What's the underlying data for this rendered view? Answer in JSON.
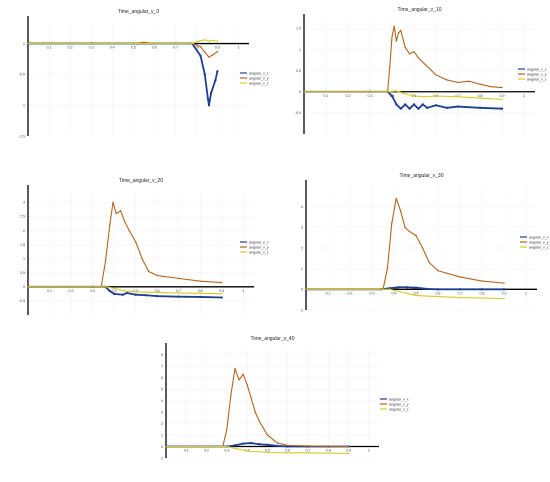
{
  "chart_data": [
    {
      "type": "line",
      "title": "Time_angular_v_0",
      "xlabel": "",
      "ylabel": "",
      "xlim": [
        0,
        1.05
      ],
      "ylim": [
        -1.5,
        0.35
      ],
      "xticks": [
        "0.1",
        "0.2",
        "0.3",
        "0.4",
        "0.5",
        "0.6",
        "0.7",
        "0.8",
        "0.9",
        "1"
      ],
      "yticks": [
        {
          "v": -1.5,
          "label": "-1.5"
        },
        {
          "v": -1,
          "label": "-1"
        },
        {
          "v": -0.5,
          "label": "-0.5"
        },
        {
          "v": 0,
          "label": "0"
        }
      ],
      "series": [
        {
          "name": "angular_v_x",
          "color": "#1f3f8f",
          "values": [
            [
              0,
              0
            ],
            [
              0.3,
              0
            ],
            [
              0.5,
              0
            ],
            [
              0.7,
              0
            ],
            [
              0.78,
              0
            ],
            [
              0.82,
              -0.2
            ],
            [
              0.84,
              -0.5
            ],
            [
              0.855,
              -0.9
            ],
            [
              0.86,
              -1.0
            ],
            [
              0.87,
              -0.8
            ],
            [
              0.89,
              -0.6
            ],
            [
              0.9,
              -0.45
            ]
          ]
        },
        {
          "name": "angular_v_y",
          "color": "#b5651d",
          "values": [
            [
              0,
              0
            ],
            [
              0.3,
              0
            ],
            [
              0.5,
              0
            ],
            [
              0.55,
              0.02
            ],
            [
              0.6,
              0
            ],
            [
              0.7,
              0
            ],
            [
              0.78,
              0
            ],
            [
              0.82,
              -0.05
            ],
            [
              0.84,
              -0.14
            ],
            [
              0.86,
              -0.22
            ],
            [
              0.88,
              -0.18
            ],
            [
              0.9,
              -0.13
            ]
          ]
        },
        {
          "name": "angular_v_z",
          "color": "#d4cc20",
          "values": [
            [
              0,
              0
            ],
            [
              0.5,
              0
            ],
            [
              0.7,
              0
            ],
            [
              0.78,
              0
            ],
            [
              0.81,
              0.04
            ],
            [
              0.84,
              0.06
            ],
            [
              0.86,
              0.04
            ],
            [
              0.88,
              0.05
            ],
            [
              0.9,
              0.04
            ]
          ]
        }
      ]
    },
    {
      "type": "line",
      "title": "Time_angular_v_10",
      "xlabel": "",
      "ylabel": "",
      "xlim": [
        0,
        1.05
      ],
      "ylim": [
        -1,
        1.7
      ],
      "xticks": [
        "0.1",
        "0.2",
        "0.3",
        "0.4",
        "0.5",
        "0.6",
        "0.7",
        "0.8",
        "0.9",
        "1"
      ],
      "yticks": [
        {
          "v": -0.5,
          "label": "-0.5"
        },
        {
          "v": 0,
          "label": "0"
        },
        {
          "v": 0.5,
          "label": "0.5"
        },
        {
          "v": 1,
          "label": "1"
        },
        {
          "v": 1.5,
          "label": "1.5"
        }
      ],
      "series": [
        {
          "name": "angular_v_x",
          "color": "#1f3f8f",
          "values": [
            [
              0,
              0
            ],
            [
              0.3,
              0
            ],
            [
              0.38,
              0
            ],
            [
              0.4,
              -0.1
            ],
            [
              0.42,
              -0.3
            ],
            [
              0.44,
              -0.4
            ],
            [
              0.46,
              -0.3
            ],
            [
              0.48,
              -0.4
            ],
            [
              0.5,
              -0.3
            ],
            [
              0.52,
              -0.4
            ],
            [
              0.54,
              -0.3
            ],
            [
              0.56,
              -0.38
            ],
            [
              0.6,
              -0.32
            ],
            [
              0.65,
              -0.38
            ],
            [
              0.7,
              -0.35
            ],
            [
              0.8,
              -0.38
            ],
            [
              0.9,
              -0.4
            ]
          ]
        },
        {
          "name": "angular_v_y",
          "color": "#b5651d",
          "values": [
            [
              0,
              0
            ],
            [
              0.3,
              0
            ],
            [
              0.38,
              0
            ],
            [
              0.39,
              0.6
            ],
            [
              0.4,
              1.3
            ],
            [
              0.41,
              1.55
            ],
            [
              0.42,
              1.2
            ],
            [
              0.43,
              1.4
            ],
            [
              0.44,
              1.45
            ],
            [
              0.46,
              1.05
            ],
            [
              0.48,
              0.9
            ],
            [
              0.5,
              0.95
            ],
            [
              0.52,
              0.8
            ],
            [
              0.55,
              0.65
            ],
            [
              0.6,
              0.4
            ],
            [
              0.65,
              0.28
            ],
            [
              0.7,
              0.22
            ],
            [
              0.75,
              0.25
            ],
            [
              0.8,
              0.18
            ],
            [
              0.85,
              0.12
            ],
            [
              0.9,
              0.1
            ]
          ]
        },
        {
          "name": "angular_v_z",
          "color": "#d4cc20",
          "values": [
            [
              0,
              0
            ],
            [
              0.38,
              0
            ],
            [
              0.42,
              0.02
            ],
            [
              0.46,
              -0.05
            ],
            [
              0.5,
              -0.1
            ],
            [
              0.55,
              -0.12
            ],
            [
              0.6,
              -0.1
            ],
            [
              0.7,
              -0.12
            ],
            [
              0.8,
              -0.15
            ],
            [
              0.9,
              -0.18
            ]
          ]
        }
      ]
    },
    {
      "type": "line",
      "title": "Time_angular_v_20",
      "xlabel": "",
      "ylabel": "",
      "xlim": [
        0,
        1.05
      ],
      "ylim": [
        -1,
        3.4
      ],
      "xticks": [
        "0.1",
        "0.2",
        "0.3",
        "0.4",
        "0.5",
        "0.6",
        "0.7",
        "0.8",
        "0.9",
        "1"
      ],
      "yticks": [
        {
          "v": -0.5,
          "label": "-0.5"
        },
        {
          "v": 0,
          "label": "0"
        },
        {
          "v": 0.5,
          "label": "0.5"
        },
        {
          "v": 1,
          "label": "1"
        },
        {
          "v": 1.5,
          "label": "1.5"
        },
        {
          "v": 2,
          "label": "2"
        },
        {
          "v": 2.5,
          "label": "2.5"
        },
        {
          "v": 3,
          "label": "3"
        }
      ],
      "series": [
        {
          "name": "angular_v_x",
          "color": "#1f3f8f",
          "values": [
            [
              0,
              0
            ],
            [
              0.3,
              0
            ],
            [
              0.36,
              0
            ],
            [
              0.38,
              -0.15
            ],
            [
              0.4,
              -0.25
            ],
            [
              0.44,
              -0.28
            ],
            [
              0.46,
              -0.22
            ],
            [
              0.5,
              -0.28
            ],
            [
              0.55,
              -0.3
            ],
            [
              0.6,
              -0.33
            ],
            [
              0.7,
              -0.35
            ],
            [
              0.8,
              -0.36
            ],
            [
              0.9,
              -0.38
            ]
          ]
        },
        {
          "name": "angular_v_y",
          "color": "#b5651d",
          "values": [
            [
              0,
              0
            ],
            [
              0.3,
              0
            ],
            [
              0.34,
              0
            ],
            [
              0.36,
              0.9
            ],
            [
              0.38,
              2.2
            ],
            [
              0.395,
              3.0
            ],
            [
              0.41,
              2.6
            ],
            [
              0.43,
              2.7
            ],
            [
              0.45,
              2.3
            ],
            [
              0.47,
              2.0
            ],
            [
              0.5,
              1.6
            ],
            [
              0.53,
              1.0
            ],
            [
              0.56,
              0.55
            ],
            [
              0.6,
              0.4
            ],
            [
              0.7,
              0.3
            ],
            [
              0.8,
              0.2
            ],
            [
              0.9,
              0.15
            ]
          ]
        },
        {
          "name": "angular_v_z",
          "color": "#d4cc20",
          "values": [
            [
              0,
              0
            ],
            [
              0.36,
              0
            ],
            [
              0.4,
              -0.05
            ],
            [
              0.45,
              -0.15
            ],
            [
              0.5,
              -0.18
            ],
            [
              0.6,
              -0.2
            ],
            [
              0.7,
              -0.22
            ],
            [
              0.8,
              -0.23
            ],
            [
              0.9,
              -0.25
            ]
          ]
        }
      ]
    },
    {
      "type": "line",
      "title": "Time_angular_v_30",
      "xlabel": "",
      "ylabel": "",
      "xlim": [
        0,
        1.05
      ],
      "ylim": [
        -1,
        5
      ],
      "xticks": [
        "0.1",
        "0.2",
        "0.3",
        "0.4",
        "0.5",
        "0.6",
        "0.7",
        "0.8",
        "0.9",
        "1"
      ],
      "yticks": [
        {
          "v": -1,
          "label": "-1"
        },
        {
          "v": 0,
          "label": "0"
        },
        {
          "v": 1,
          "label": "1"
        },
        {
          "v": 2,
          "label": "2"
        },
        {
          "v": 3,
          "label": "3"
        },
        {
          "v": 4,
          "label": "4"
        }
      ],
      "series": [
        {
          "name": "angular_v_x",
          "color": "#1f3f8f",
          "values": [
            [
              0,
              0
            ],
            [
              0.34,
              0
            ],
            [
              0.38,
              0.05
            ],
            [
              0.42,
              0.1
            ],
            [
              0.46,
              0.1
            ],
            [
              0.5,
              0.08
            ],
            [
              0.55,
              0.02
            ],
            [
              0.6,
              0
            ],
            [
              0.7,
              0
            ],
            [
              0.8,
              0
            ],
            [
              0.9,
              0
            ]
          ]
        },
        {
          "name": "angular_v_y",
          "color": "#b5651d",
          "values": [
            [
              0,
              0
            ],
            [
              0.3,
              0
            ],
            [
              0.35,
              0
            ],
            [
              0.37,
              1.0
            ],
            [
              0.39,
              3.2
            ],
            [
              0.41,
              4.4
            ],
            [
              0.43,
              3.8
            ],
            [
              0.45,
              3.0
            ],
            [
              0.47,
              2.8
            ],
            [
              0.5,
              2.6
            ],
            [
              0.53,
              2.0
            ],
            [
              0.56,
              1.3
            ],
            [
              0.6,
              0.9
            ],
            [
              0.7,
              0.6
            ],
            [
              0.8,
              0.4
            ],
            [
              0.9,
              0.3
            ]
          ]
        },
        {
          "name": "angular_v_z",
          "color": "#d4cc20",
          "values": [
            [
              0,
              0
            ],
            [
              0.38,
              0
            ],
            [
              0.42,
              -0.1
            ],
            [
              0.46,
              -0.2
            ],
            [
              0.5,
              -0.3
            ],
            [
              0.6,
              -0.35
            ],
            [
              0.7,
              -0.4
            ],
            [
              0.8,
              -0.42
            ],
            [
              0.9,
              -0.45
            ]
          ]
        }
      ]
    },
    {
      "type": "line",
      "title": "Time_angular_v_40",
      "xlabel": "",
      "ylabel": "",
      "xlim": [
        0,
        1.05
      ],
      "ylim": [
        -1,
        8.5
      ],
      "xticks": [
        "0.1",
        "0.2",
        "0.3",
        "0.4",
        "0.5",
        "0.6",
        "0.7",
        "0.8",
        "0.9",
        "1"
      ],
      "yticks": [
        {
          "v": -1,
          "label": "-1"
        },
        {
          "v": 0,
          "label": "0"
        },
        {
          "v": 1,
          "label": "1"
        },
        {
          "v": 2,
          "label": "2"
        },
        {
          "v": 3,
          "label": "3"
        },
        {
          "v": 4,
          "label": "4"
        },
        {
          "v": 5,
          "label": "5"
        },
        {
          "v": 6,
          "label": "6"
        },
        {
          "v": 7,
          "label": "7"
        },
        {
          "v": 8,
          "label": "8"
        }
      ],
      "series": [
        {
          "name": "angular_v_x",
          "color": "#1f3f8f",
          "values": [
            [
              0,
              0
            ],
            [
              0.3,
              0
            ],
            [
              0.34,
              0.1
            ],
            [
              0.38,
              0.25
            ],
            [
              0.42,
              0.3
            ],
            [
              0.46,
              0.2
            ],
            [
              0.5,
              0.15
            ],
            [
              0.55,
              0.05
            ],
            [
              0.6,
              0
            ],
            [
              0.7,
              0
            ],
            [
              0.8,
              0
            ],
            [
              0.9,
              0
            ]
          ]
        },
        {
          "name": "angular_v_y",
          "color": "#b5651d",
          "values": [
            [
              0,
              0
            ],
            [
              0.25,
              0
            ],
            [
              0.28,
              0
            ],
            [
              0.3,
              1.5
            ],
            [
              0.32,
              4.5
            ],
            [
              0.34,
              6.8
            ],
            [
              0.36,
              5.8
            ],
            [
              0.38,
              6.3
            ],
            [
              0.4,
              5.4
            ],
            [
              0.42,
              4.2
            ],
            [
              0.44,
              3.0
            ],
            [
              0.46,
              2.2
            ],
            [
              0.5,
              1.0
            ],
            [
              0.55,
              0.3
            ],
            [
              0.6,
              0.1
            ],
            [
              0.7,
              0.05
            ],
            [
              0.9,
              0
            ]
          ]
        },
        {
          "name": "angular_v_z",
          "color": "#d4cc20",
          "values": [
            [
              0,
              0
            ],
            [
              0.3,
              0
            ],
            [
              0.35,
              -0.2
            ],
            [
              0.4,
              -0.4
            ],
            [
              0.5,
              -0.5
            ],
            [
              0.6,
              -0.55
            ],
            [
              0.7,
              -0.55
            ],
            [
              0.8,
              -0.58
            ],
            [
              0.9,
              -0.6
            ]
          ]
        }
      ]
    }
  ]
}
